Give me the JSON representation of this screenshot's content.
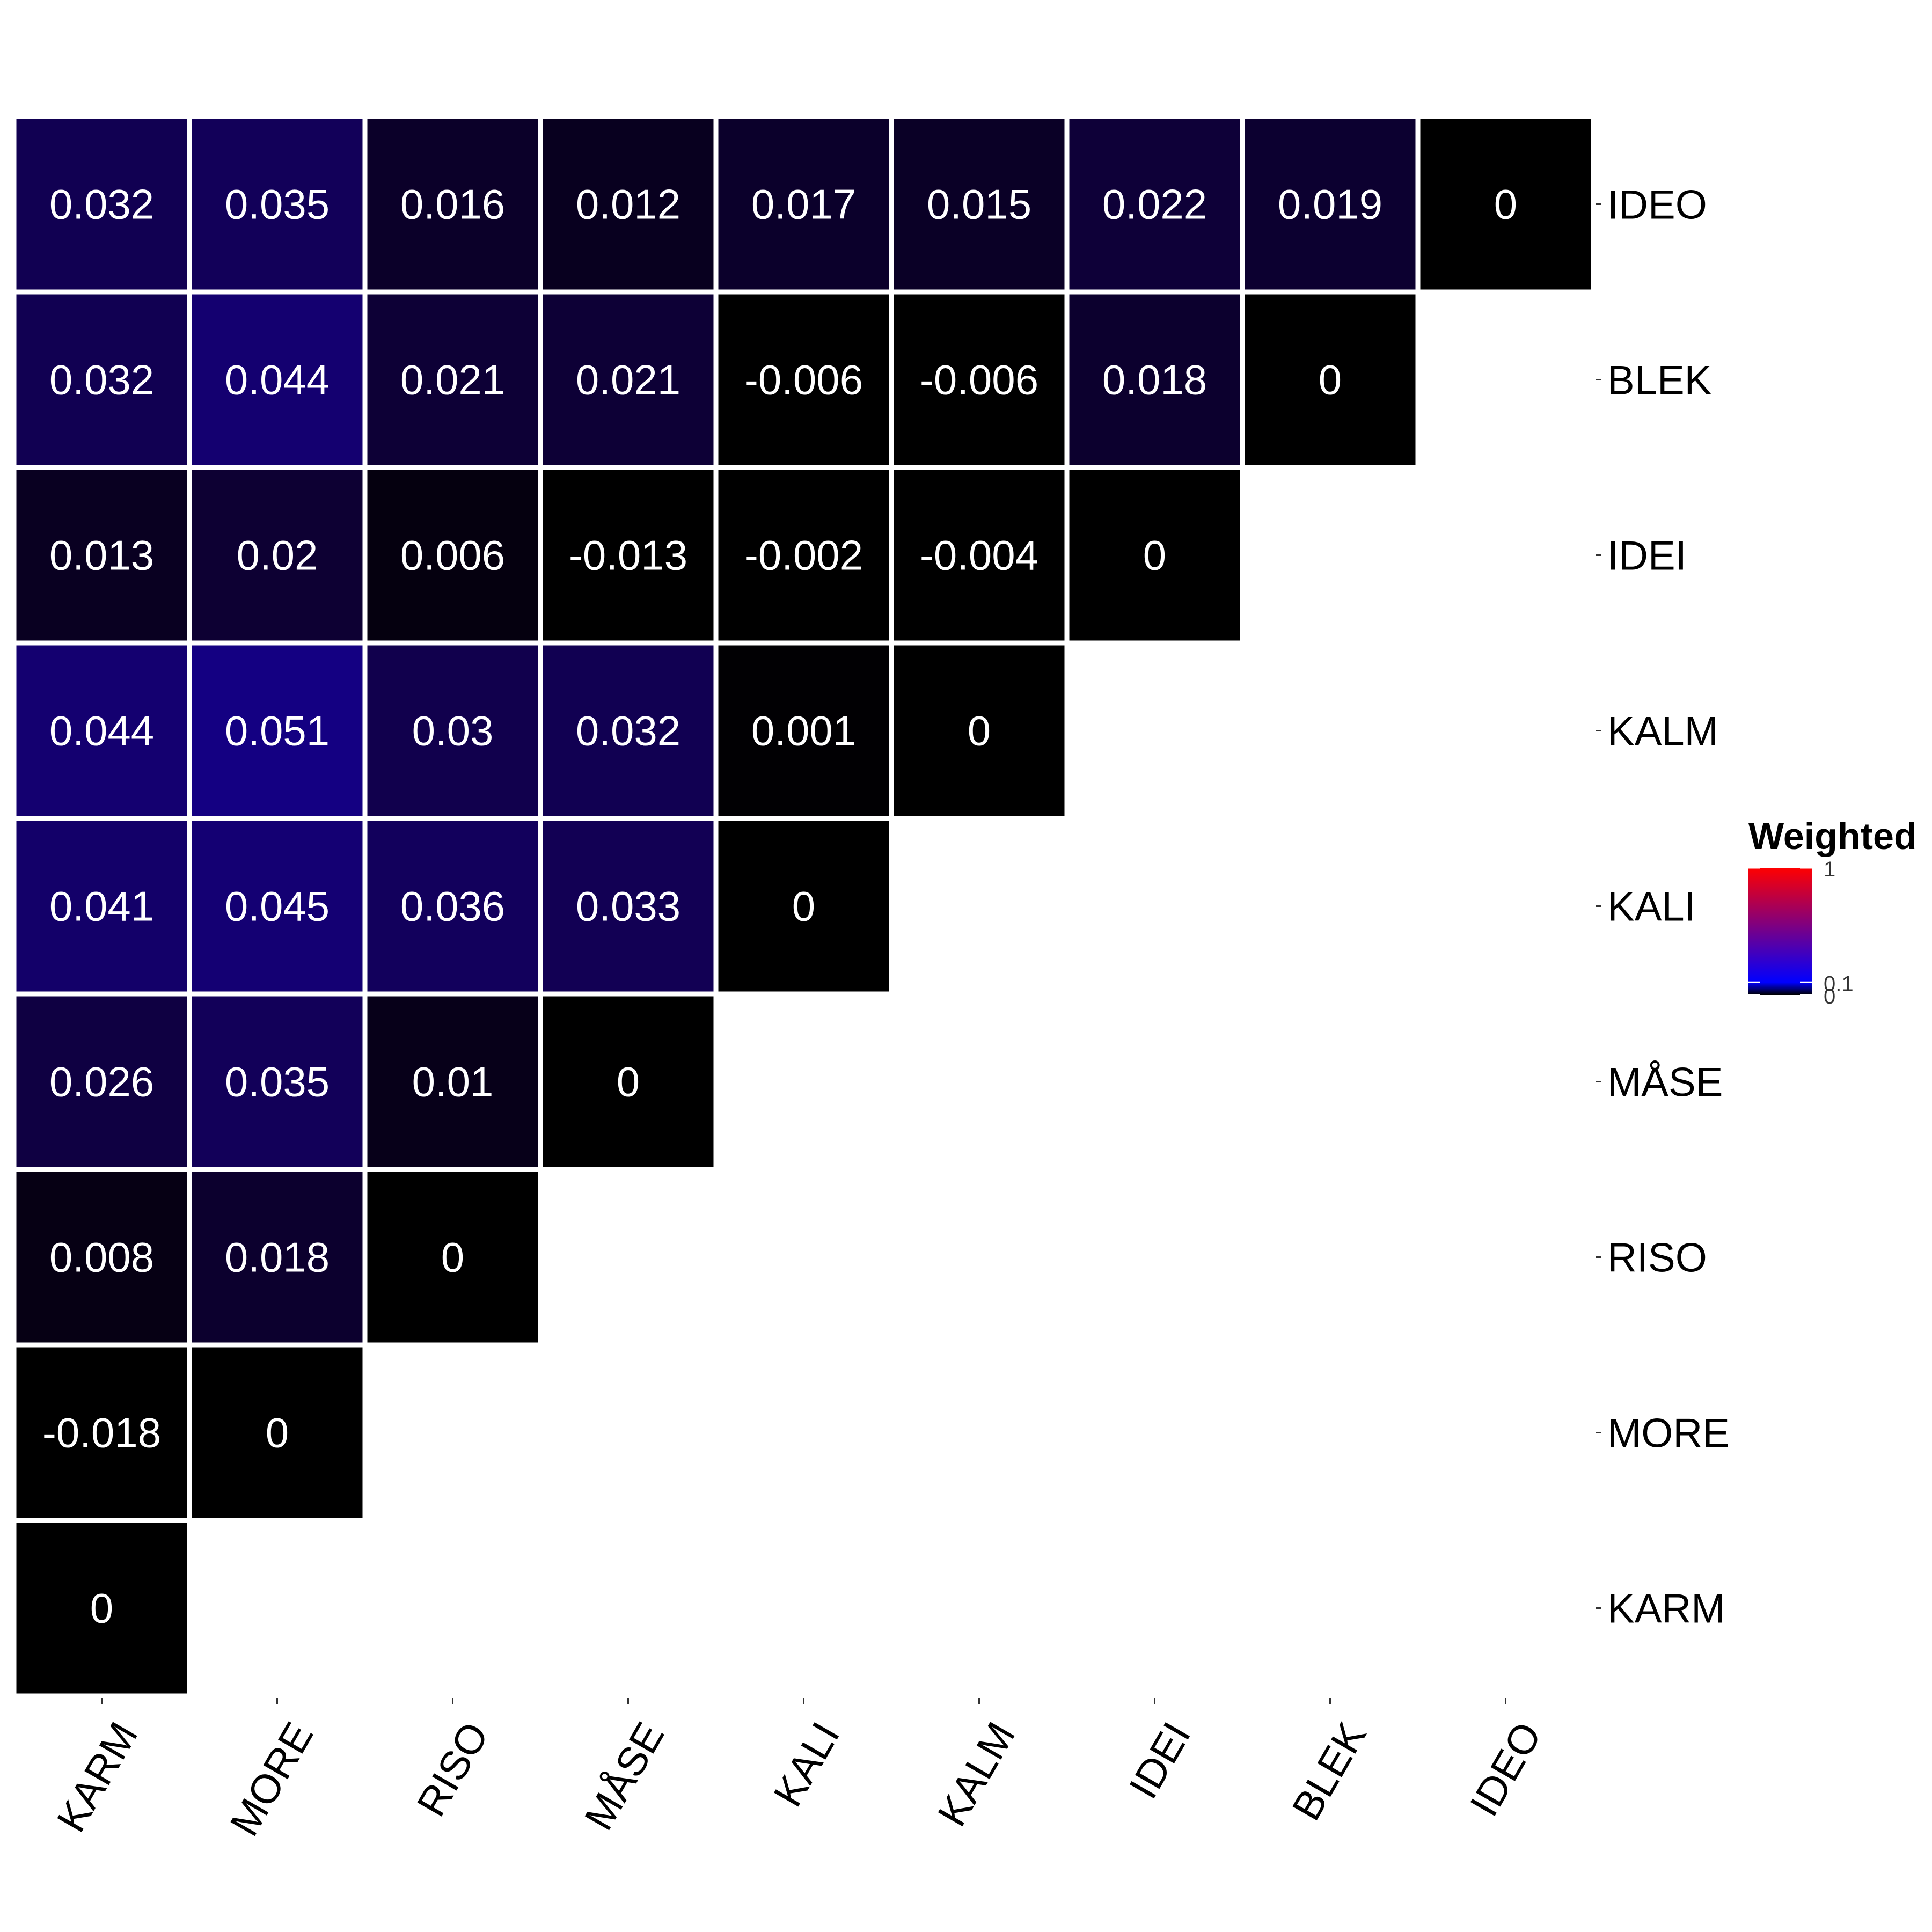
{
  "chart_data": {
    "type": "heatmap",
    "layout": "lower-triangle",
    "x_categories": [
      "KARM",
      "MORE",
      "RISO",
      "MÅSE",
      "KALI",
      "KALM",
      "IDEI",
      "BLEK",
      "IDEO"
    ],
    "y_categories": [
      "IDEO",
      "BLEK",
      "IDEI",
      "KALM",
      "KALI",
      "MÅSE",
      "RISO",
      "MORE",
      "KARM"
    ],
    "rows": [
      {
        "y": "IDEO",
        "values": [
          0.032,
          0.035,
          0.016,
          0.012,
          0.017,
          0.015,
          0.022,
          0.019,
          0
        ]
      },
      {
        "y": "BLEK",
        "values": [
          0.032,
          0.044,
          0.021,
          0.021,
          -0.006,
          -0.006,
          0.018,
          0
        ]
      },
      {
        "y": "IDEI",
        "values": [
          0.013,
          0.02,
          0.006,
          -0.013,
          -0.002,
          -0.004,
          0
        ]
      },
      {
        "y": "KALM",
        "values": [
          0.044,
          0.051,
          0.03,
          0.032,
          0.001,
          0
        ]
      },
      {
        "y": "KALI",
        "values": [
          0.041,
          0.045,
          0.036,
          0.033,
          0
        ]
      },
      {
        "y": "MÅSE",
        "values": [
          0.026,
          0.035,
          0.01,
          0
        ]
      },
      {
        "y": "RISO",
        "values": [
          0.008,
          0.018,
          0
        ]
      },
      {
        "y": "MORE",
        "values": [
          -0.018,
          0
        ]
      },
      {
        "y": "KARM",
        "values": [
          0
        ]
      }
    ],
    "legend": {
      "title": "Weighted",
      "ticks": [
        1,
        0.1,
        0
      ],
      "placement": "right",
      "color_stops": [
        {
          "value": 0,
          "color": "#000000"
        },
        {
          "value": 0.1,
          "color": "#0000ff"
        },
        {
          "value": 1,
          "color": "#ff0000"
        }
      ]
    },
    "grid": false,
    "cell_border_color": "#ffffff",
    "label_color": "#ffffff"
  }
}
